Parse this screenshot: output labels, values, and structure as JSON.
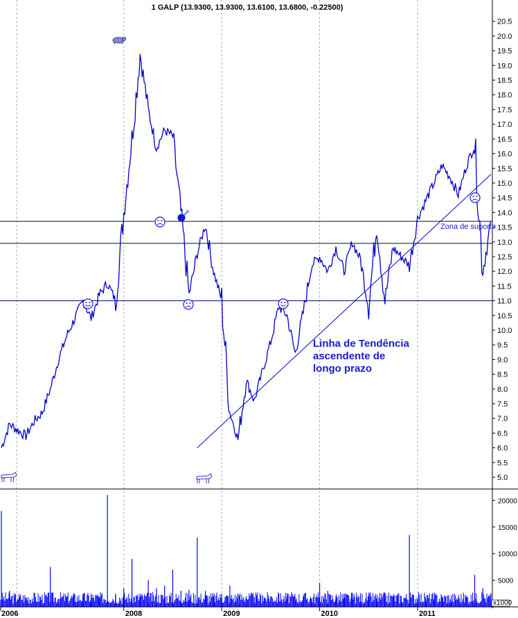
{
  "chart_data": [
    {
      "type": "line",
      "title": "1 GALP (13.9300, 13.9300, 13.6100, 13.6800, -0.22500)",
      "subtitle": "",
      "xlabel": "",
      "ylabel": "",
      "x_ticks": [
        "2006",
        "2008",
        "2009",
        "2010",
        "2011"
      ],
      "y_ticks": [
        "5.0",
        "5.5",
        "6.0",
        "6.5",
        "7.0",
        "7.5",
        "8.0",
        "8.5",
        "9.0",
        "9.5",
        "10.0",
        "10.5",
        "11.0",
        "11.5",
        "12.0",
        "12.5",
        "13.0",
        "13.5",
        "14.0",
        "14.5",
        "15.0",
        "15.5",
        "16.0",
        "16.5",
        "17.0",
        "17.5",
        "18.0",
        "18.5",
        "19.0",
        "19.5",
        "20.0",
        "20.5"
      ],
      "ylim": [
        4.6,
        20.8
      ],
      "x_range": [
        "2006-10",
        "2011-10"
      ],
      "grid": "vertical dashed at year boundaries",
      "series": [
        {
          "name": "",
          "color": "#0000cc",
          "x": [
            "2006-10",
            "2006-11",
            "2006-12",
            "2007-01",
            "2007-02",
            "2007-03",
            "2007-04",
            "2007-05",
            "2007-06",
            "2007-07",
            "2007-08",
            "2007-09",
            "2007-10",
            "2007-11",
            "2007-12",
            "2008-01",
            "2008-02",
            "2008-03",
            "2008-04",
            "2008-05",
            "2008-06",
            "2008-07",
            "2008-08",
            "2008-09",
            "2008-10",
            "2008-11",
            "2008-12",
            "2009-01",
            "2009-02",
            "2009-03",
            "2009-04",
            "2009-05",
            "2009-06",
            "2009-07",
            "2009-08",
            "2009-09",
            "2009-10",
            "2009-11",
            "2009-12",
            "2010-01",
            "2010-02",
            "2010-03",
            "2010-04",
            "2010-05",
            "2010-06",
            "2010-07",
            "2010-08",
            "2010-09",
            "2010-10",
            "2010-11",
            "2010-12",
            "2011-01",
            "2011-02",
            "2011-03",
            "2011-04",
            "2011-05",
            "2011-06",
            "2011-07",
            "2011-08",
            "2011-09",
            "2011-10"
          ],
          "values": [
            6.0,
            6.8,
            6.6,
            6.4,
            6.9,
            7.2,
            8.0,
            9.0,
            9.8,
            10.4,
            11.0,
            10.4,
            11.2,
            11.6,
            11.0,
            14.0,
            16.5,
            19.4,
            17.5,
            16.2,
            16.8,
            16.6,
            14.0,
            11.2,
            12.6,
            13.6,
            12.0,
            11.0,
            7.2,
            6.3,
            8.3,
            7.6,
            8.6,
            9.6,
            10.8,
            10.5,
            9.2,
            10.6,
            12.2,
            12.5,
            12.0,
            12.8,
            12.0,
            13.0,
            12.4,
            10.8,
            13.6,
            11.0,
            12.8,
            12.5,
            12.2,
            13.8,
            14.4,
            15.0,
            15.6,
            15.2,
            14.6,
            15.6,
            16.3,
            12.0,
            13.7
          ]
        }
      ],
      "horizontal_lines": [
        13.7,
        12.95,
        11.0
      ],
      "trend_line": {
        "from": {
          "x": "2008-10",
          "y": 6.0
        },
        "to": {
          "x": "2011-10",
          "y": 15.3
        }
      },
      "annotations": [
        {
          "text": "Linha de Tendência",
          "x": "2010-01",
          "y": 10.0
        },
        {
          "text": "ascendente de",
          "x": "2010-01",
          "y": 9.55
        },
        {
          "text": "longo prazo",
          "x": "2010-01",
          "y": 9.1
        },
        {
          "text": "Zona de suporte",
          "x": "2011-05",
          "y": 13.5
        }
      ],
      "icons": [
        {
          "name": "bull-icon",
          "x": "2006-10",
          "y": 5.5
        },
        {
          "name": "smiley-happy-icon",
          "x": "2007-07",
          "y": 11.5
        },
        {
          "name": "bear-icon",
          "x": "2008-03",
          "y": 19.8
        },
        {
          "name": "smiley-sad-icon",
          "x": "2008-07",
          "y": 14.0
        },
        {
          "name": "bomb-icon",
          "x": "2008-09",
          "y": 14.4
        },
        {
          "name": "smiley-sad-icon",
          "x": "2009-01",
          "y": 10.7
        },
        {
          "name": "bull-icon",
          "x": "2009-02",
          "y": 5.5
        },
        {
          "name": "smiley-happy-icon",
          "x": "2009-09",
          "y": 11.5
        },
        {
          "name": "smiley-sad-icon",
          "x": "2011-09",
          "y": 14.3
        }
      ]
    },
    {
      "type": "bar",
      "title": "",
      "xlabel": "",
      "ylabel": "",
      "unit_label": "x1000",
      "y_ticks": [
        "5000",
        "10000",
        "15000",
        "20000"
      ],
      "ylim": [
        0,
        22000
      ],
      "series": [
        {
          "name": "",
          "color": "#0000ff",
          "x": [
            "2006-10",
            "2006-11",
            "2006-12",
            "2007-01",
            "2007-02",
            "2007-03",
            "2007-04",
            "2007-05",
            "2007-06",
            "2007-07",
            "2007-08",
            "2007-09",
            "2007-10",
            "2007-11",
            "2007-12",
            "2008-01",
            "2008-02",
            "2008-03",
            "2008-04",
            "2008-05",
            "2008-06",
            "2008-07",
            "2008-08",
            "2008-09",
            "2008-10",
            "2008-11",
            "2008-12",
            "2009-01",
            "2009-02",
            "2009-03",
            "2009-04",
            "2009-05",
            "2009-06",
            "2009-07",
            "2009-08",
            "2009-09",
            "2009-10",
            "2009-11",
            "2009-12",
            "2010-01",
            "2010-02",
            "2010-03",
            "2010-04",
            "2010-05",
            "2010-06",
            "2010-07",
            "2010-08",
            "2010-09",
            "2010-10",
            "2010-11",
            "2010-12",
            "2011-01",
            "2011-02",
            "2011-03",
            "2011-04",
            "2011-05",
            "2011-06",
            "2011-07",
            "2011-08",
            "2011-09",
            "2011-10"
          ],
          "values": [
            18000,
            3000,
            1500,
            1200,
            1400,
            1300,
            7500,
            1500,
            1800,
            2200,
            2000,
            2500,
            1500,
            21000,
            2500,
            3500,
            9000,
            2500,
            5000,
            3500,
            4000,
            7000,
            3000,
            3200,
            13000,
            3000,
            2000,
            2500,
            4000,
            2500,
            2000,
            1800,
            2200,
            2000,
            2500,
            2000,
            1800,
            2000,
            1500,
            4500,
            3000,
            2000,
            2500,
            2200,
            2000,
            1800,
            1500,
            1800,
            2000,
            1500,
            13500,
            1500,
            1500,
            1200,
            1500,
            1400,
            1800,
            2000,
            6000,
            3500,
            1500
          ]
        }
      ]
    }
  ]
}
